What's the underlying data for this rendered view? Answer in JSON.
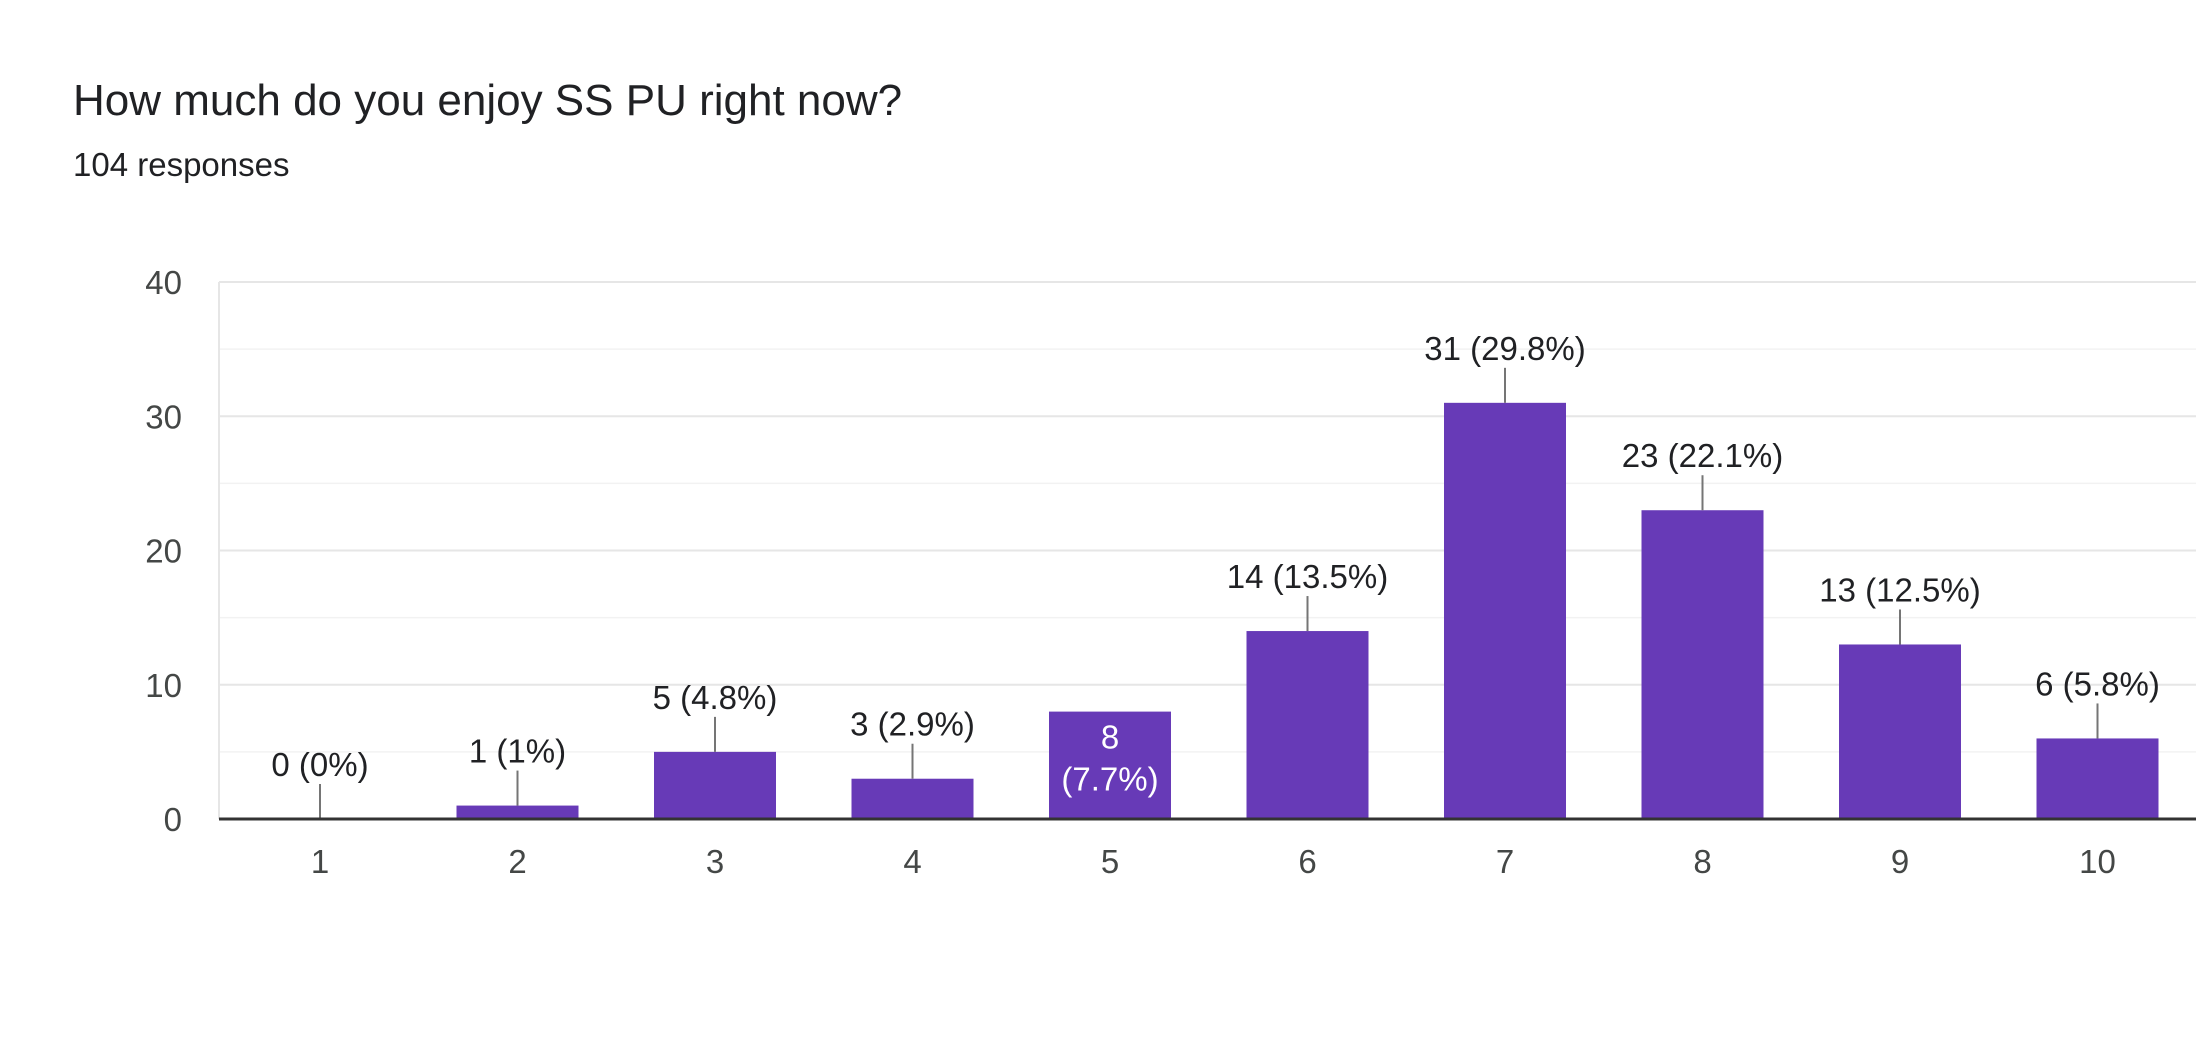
{
  "question": {
    "title": "How much do you enjoy SS PU right now?",
    "responses": "104 responses"
  },
  "chart_data": {
    "type": "bar",
    "title": "How much do you enjoy SS PU right now?",
    "subtitle": "104 responses",
    "xlabel": "",
    "ylabel": "",
    "categories": [
      "1",
      "2",
      "3",
      "4",
      "5",
      "6",
      "7",
      "8",
      "9",
      "10"
    ],
    "values": [
      0,
      1,
      5,
      3,
      8,
      14,
      31,
      23,
      13,
      6
    ],
    "labels": [
      "0 (0%)",
      "1 (1%)",
      "5 (4.8%)",
      "3 (2.9%)",
      "8 (7.7%)",
      "14 (13.5%)",
      "31 (29.8%)",
      "23 (22.1%)",
      "13 (12.5%)",
      "6 (5.8%)"
    ],
    "inside_label_lines": [
      [
        "8",
        "(7.7%)"
      ]
    ],
    "inside_label_category": "5",
    "ylim": [
      0,
      40
    ],
    "yticks": [
      0,
      10,
      20,
      30,
      40
    ],
    "grid": true,
    "legend": "none",
    "bar_color": "#673ab7"
  }
}
